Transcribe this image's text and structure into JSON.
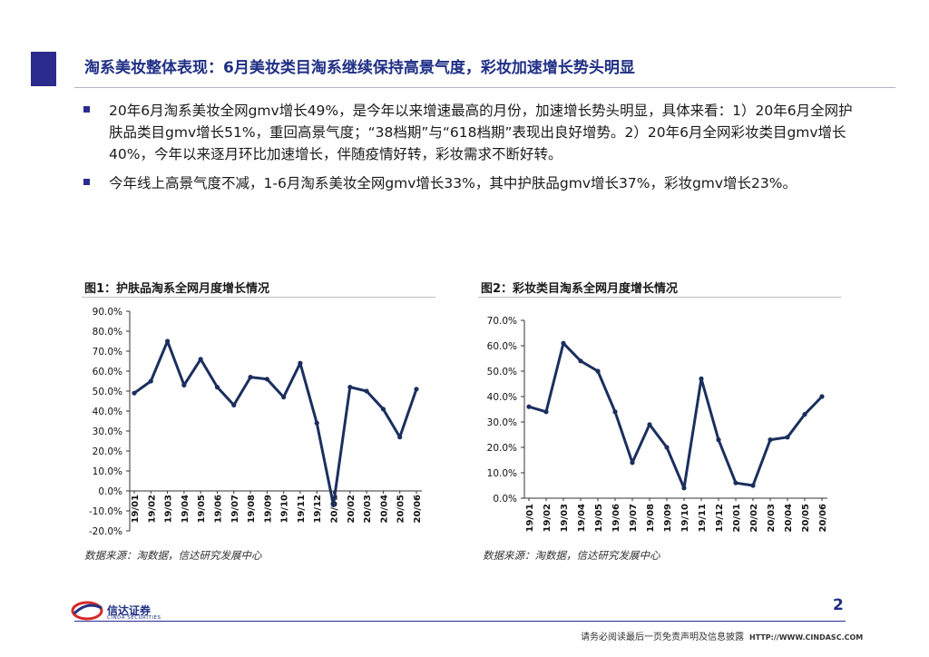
{
  "header": {
    "title": "淘系美妆整体表现：6月美妆类目淘系继续保持高景气度，彩妆加速增长势头明显"
  },
  "bullets": [
    "20年6月淘系美妆全网gmv增长49%，是今年以来增速最高的月份，加速增长势头明显，具体来看：1）20年6月全网护肤品类目gmv增长51%，重回高景气度；“38档期”与“618档期”表现出良好增势。2）20年6月全网彩妆类目gmv增长40%，今年以来逐月环比加速增长，伴随疫情好转，彩妆需求不断好转。",
    "今年线上高景气度不减，1-6月淘系美妆全网gmv增长33%，其中护肤品gmv增长37%，彩妆gmv增长23%。"
  ],
  "figure1": {
    "title": "图1：护肤品淘系全网月度增长情况",
    "source": "数据来源：淘数据，信达研究发展中心"
  },
  "figure2": {
    "title": "图2：彩妆类目淘系全网月度增长情况",
    "source": "数据来源：淘数据，信达研究发展中心"
  },
  "chart_data": [
    {
      "type": "line",
      "title": "图1：护肤品淘系全网月度增长情况",
      "categories": [
        "19/01",
        "19/02",
        "19/03",
        "19/04",
        "19/05",
        "19/06",
        "19/07",
        "19/08",
        "19/09",
        "19/10",
        "19/11",
        "19/12",
        "20/01",
        "20/02",
        "20/03",
        "20/04",
        "20/05",
        "20/06"
      ],
      "values": [
        49,
        55,
        75,
        53,
        66,
        52,
        43,
        57,
        56,
        47,
        64,
        34,
        -7,
        52,
        50,
        41,
        27,
        51
      ],
      "ylim": [
        -20,
        90
      ],
      "ystep": 10,
      "yticks": [
        "90.0%",
        "80.0%",
        "70.0%",
        "60.0%",
        "50.0%",
        "40.0%",
        "30.0%",
        "20.0%",
        "10.0%",
        "0.0%",
        "-10.0%",
        "-20.0%"
      ],
      "xlabel": "",
      "ylabel": "",
      "line_color": "#1b2f5e"
    },
    {
      "type": "line",
      "title": "图2：彩妆类目淘系全网月度增长情况",
      "categories": [
        "19/01",
        "19/02",
        "19/03",
        "19/04",
        "19/05",
        "19/06",
        "19/07",
        "19/08",
        "19/09",
        "19/10",
        "19/11",
        "19/12",
        "20/01",
        "20/02",
        "20/03",
        "20/04",
        "20/05",
        "20/06"
      ],
      "values": [
        36,
        34,
        61,
        54,
        50,
        34,
        14,
        29,
        20,
        4,
        47,
        23,
        6,
        5,
        23,
        24,
        33,
        40
      ],
      "ylim": [
        0,
        70
      ],
      "ystep": 10,
      "yticks": [
        "70.0%",
        "60.0%",
        "50.0%",
        "40.0%",
        "30.0%",
        "20.0%",
        "10.0%",
        "0.0%"
      ],
      "xlabel": "",
      "ylabel": "",
      "line_color": "#1b2f5e"
    }
  ],
  "footer": {
    "logo_name": "信达证券",
    "logo_sub": "CINDA SECURITIES",
    "page_number": "2",
    "disclaimer": "请务必阅读最后一页免责声明及信息披露",
    "url": "HTTP://WWW.CINDASC.COM"
  }
}
